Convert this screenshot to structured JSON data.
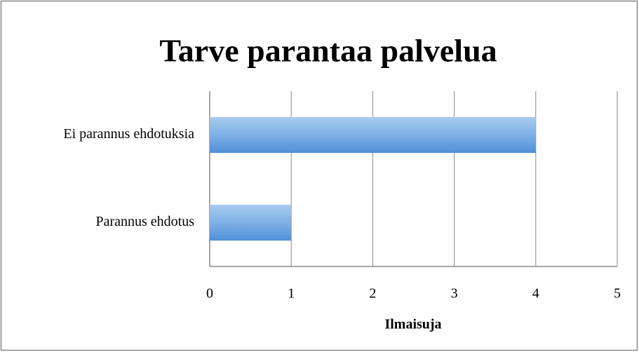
{
  "chart_data": {
    "type": "bar",
    "orientation": "horizontal",
    "title": "Tarve parantaa palvelua",
    "xlabel": "Ilmaisuja",
    "categories": [
      "Ei parannus ehdotuksia",
      "Parannus ehdotus"
    ],
    "values": [
      4,
      1
    ],
    "color": "#5b9bd5",
    "xlim": [
      0,
      5
    ],
    "xticks": [
      0,
      1,
      2,
      3,
      4,
      5
    ],
    "grid": true
  }
}
